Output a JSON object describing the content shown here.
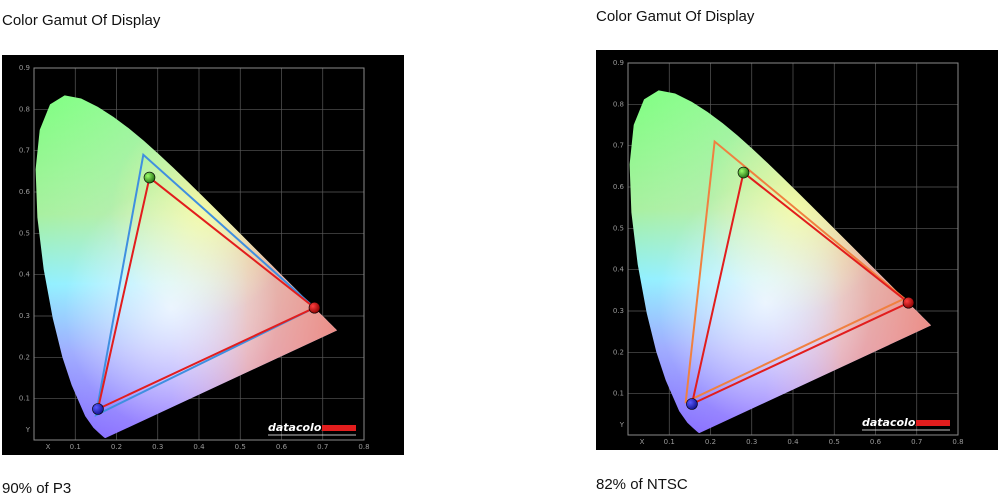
{
  "chart_data": [
    {
      "type": "scatter",
      "title": "Color Gamut Of Display",
      "caption": "90% of P3",
      "xlabel": "X",
      "ylabel": "Y",
      "xlim": [
        0,
        0.8
      ],
      "ylim": [
        0,
        0.9
      ],
      "x_ticks": [
        "0.1",
        "0.2",
        "0.3",
        "0.4",
        "0.5",
        "0.6",
        "0.7",
        "0.8"
      ],
      "y_ticks": [
        "0.1",
        "0.2",
        "0.3",
        "0.4",
        "0.5",
        "0.6",
        "0.7",
        "0.8",
        "0.9"
      ],
      "grid": true,
      "series": [
        {
          "role": "measured",
          "color": "#e21d1d",
          "points": [
            [
              0.68,
              0.32
            ],
            [
              0.28,
              0.635
            ],
            [
              0.155,
              0.075
            ]
          ]
        },
        {
          "role": "reference",
          "color": "#3f8fe0",
          "points": [
            [
              0.68,
              0.32
            ],
            [
              0.265,
              0.69
            ],
            [
              0.15,
              0.06
            ]
          ]
        }
      ],
      "logo": "datacolor"
    },
    {
      "type": "scatter",
      "title": "Color Gamut Of Display",
      "caption": "82% of NTSC",
      "xlabel": "X",
      "ylabel": "Y",
      "xlim": [
        0,
        0.8
      ],
      "ylim": [
        0,
        0.9
      ],
      "x_ticks": [
        "0.1",
        "0.2",
        "0.3",
        "0.4",
        "0.5",
        "0.6",
        "0.7",
        "0.8"
      ],
      "y_ticks": [
        "0.1",
        "0.2",
        "0.3",
        "0.4",
        "0.5",
        "0.6",
        "0.7",
        "0.8",
        "0.9"
      ],
      "grid": true,
      "series": [
        {
          "role": "measured",
          "color": "#e21d1d",
          "points": [
            [
              0.68,
              0.32
            ],
            [
              0.28,
              0.635
            ],
            [
              0.155,
              0.075
            ]
          ]
        },
        {
          "role": "reference",
          "color": "#f08040",
          "points": [
            [
              0.67,
              0.33
            ],
            [
              0.21,
              0.71
            ],
            [
              0.14,
              0.08
            ]
          ]
        }
      ],
      "logo": "datacolor"
    }
  ]
}
